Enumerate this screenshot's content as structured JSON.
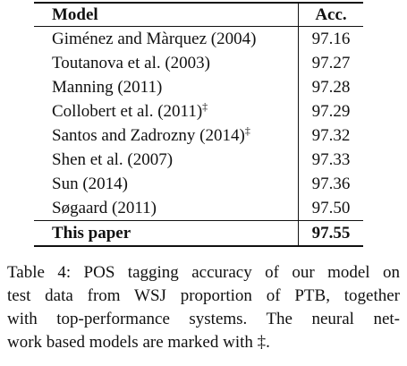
{
  "table": {
    "header": [
      "Model",
      "Acc."
    ],
    "rows": [
      {
        "model": "Giménez and Màrquez (2004)",
        "acc": "97.16"
      },
      {
        "model": "Toutanova et al. (2003)",
        "acc": "97.27"
      },
      {
        "model": "Manning (2011)",
        "acc": "97.28"
      },
      {
        "model": "Collobert et al. (2011)",
        "mark": "‡",
        "acc": "97.29"
      },
      {
        "model": "Santos and Zadrozny (2014)",
        "mark": "‡",
        "acc": "97.32"
      },
      {
        "model": "Shen et al. (2007)",
        "acc": "97.33"
      },
      {
        "model": "Sun (2014)",
        "acc": "97.36"
      },
      {
        "model": "Søgaard (2011)",
        "acc": "97.50"
      },
      {
        "model": "This paper",
        "acc": "97.55",
        "bold": true
      }
    ]
  },
  "caption": [
    "Table 4: POS tagging accuracy of our model on",
    "test data from WSJ proportion of PTB, together",
    "with top-performance systems.  The neural net-",
    "work based models are marked with ‡."
  ]
}
